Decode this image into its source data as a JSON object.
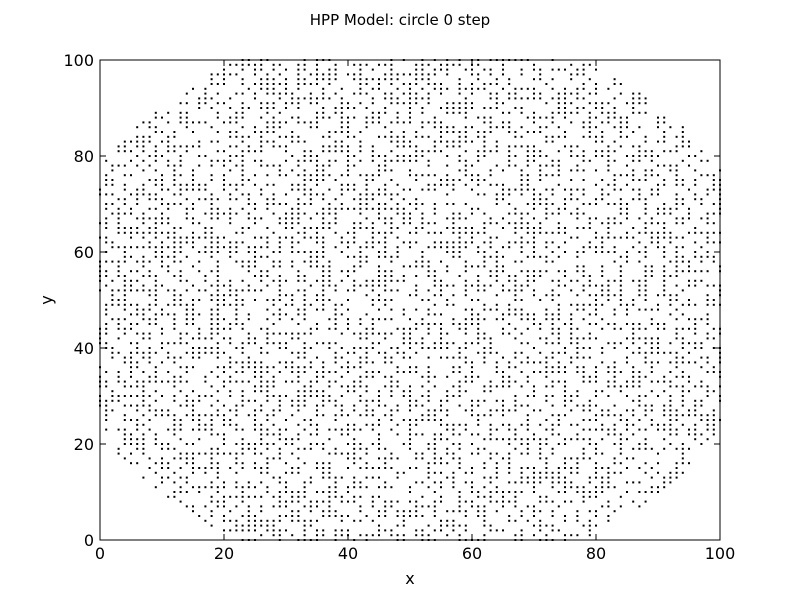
{
  "chart_data": {
    "type": "scatter",
    "title": "HPP Model: circle 0 step",
    "xlabel": "x",
    "ylabel": "y",
    "xlim": [
      0,
      100
    ],
    "ylim": [
      0,
      100
    ],
    "xticks": [
      "0",
      "20",
      "40",
      "60",
      "80",
      "100"
    ],
    "yticks": [
      "0",
      "20",
      "40",
      "60",
      "80",
      "100"
    ],
    "grid": false,
    "legend": "none",
    "marker_color": "#000000",
    "circle": {
      "center": [
        50,
        50
      ],
      "radius": 57,
      "lattice_step": 1,
      "fill_fraction": 0.5
    },
    "series": [
      {
        "points": "random lattice points with integer x in [0, 100], integer y in [0, 100], inside radius 57 of (50, 50); about half of the lattice sites occupied"
      }
    ]
  }
}
